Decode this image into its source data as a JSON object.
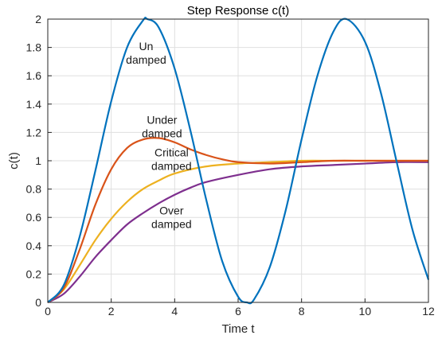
{
  "chart_data": {
    "type": "line",
    "title": "Step Response c(t)",
    "xlabel": "Time t",
    "ylabel": "c(t)",
    "xlim": [
      0,
      12
    ],
    "ylim": [
      0,
      2
    ],
    "xticks": [
      "0",
      "2",
      "4",
      "6",
      "8",
      "10",
      "12"
    ],
    "yticks": [
      "0",
      "0.2",
      "0.4",
      "0.6",
      "0.8",
      "1",
      "1.2",
      "1.4",
      "1.6",
      "1.8",
      "2"
    ],
    "grid": true,
    "series": [
      {
        "key": "undamped",
        "color": "#0072BD",
        "x": [
          0,
          0.5,
          1,
          1.5,
          2,
          2.5,
          3,
          3.14,
          3.5,
          4,
          4.5,
          5,
          5.5,
          6,
          6.28,
          6.5,
          7,
          7.5,
          8,
          8.5,
          9,
          9.42,
          10,
          10.5,
          11,
          11.5,
          12
        ],
        "y": [
          0,
          0.12,
          0.46,
          0.93,
          1.42,
          1.8,
          1.99,
          2.0,
          1.94,
          1.65,
          1.21,
          0.72,
          0.29,
          0.04,
          0.0,
          0.02,
          0.25,
          0.65,
          1.15,
          1.6,
          1.91,
          2.0,
          1.84,
          1.48,
          0.99,
          0.51,
          0.16
        ]
      },
      {
        "key": "under",
        "color": "#D95319",
        "x": [
          0,
          0.5,
          1,
          1.5,
          2,
          2.5,
          3,
          3.5,
          4,
          4.5,
          5,
          5.5,
          6,
          7,
          8,
          9,
          10,
          11,
          12
        ],
        "y": [
          0,
          0.1,
          0.37,
          0.69,
          0.94,
          1.09,
          1.15,
          1.16,
          1.13,
          1.08,
          1.04,
          1.01,
          0.99,
          0.98,
          0.99,
          1.0,
          1.0,
          1.0,
          1.0
        ]
      },
      {
        "key": "critical",
        "color": "#EDB120",
        "x": [
          0,
          0.5,
          1,
          1.5,
          2,
          2.5,
          3,
          3.5,
          4,
          5,
          6,
          7,
          8,
          9,
          10,
          11,
          12
        ],
        "y": [
          0,
          0.09,
          0.26,
          0.44,
          0.59,
          0.71,
          0.8,
          0.86,
          0.91,
          0.96,
          0.98,
          0.99,
          1.0,
          1.0,
          1.0,
          1.0,
          1.0
        ]
      },
      {
        "key": "over",
        "color": "#7E2F8E",
        "x": [
          0,
          0.5,
          1,
          1.5,
          2,
          2.5,
          3,
          3.5,
          4,
          4.5,
          5,
          6,
          7,
          8,
          9,
          10,
          11,
          12
        ],
        "y": [
          0,
          0.06,
          0.18,
          0.32,
          0.44,
          0.55,
          0.63,
          0.7,
          0.76,
          0.81,
          0.85,
          0.9,
          0.94,
          0.96,
          0.97,
          0.98,
          0.99,
          0.99
        ]
      }
    ],
    "annotations": [
      {
        "lines": [
          "Un",
          "damped"
        ],
        "x": 3.1,
        "y": 1.78
      },
      {
        "lines": [
          "Under",
          "damped"
        ],
        "x": 3.6,
        "y": 1.26
      },
      {
        "lines": [
          "Critical",
          "damped"
        ],
        "x": 3.9,
        "y": 1.03
      },
      {
        "lines": [
          "Over",
          "damped"
        ],
        "x": 3.9,
        "y": 0.62
      }
    ]
  }
}
